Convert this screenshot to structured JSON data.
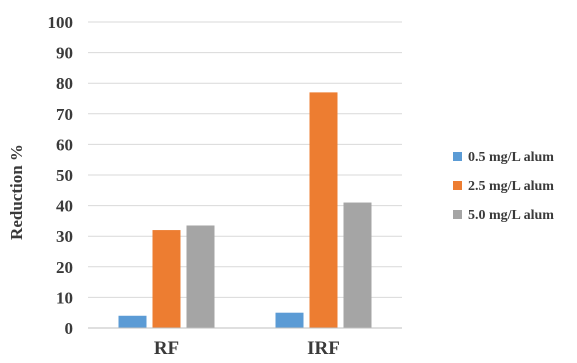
{
  "chart_data": {
    "type": "bar",
    "title": "",
    "xlabel": "",
    "ylabel": "Reduction %",
    "ylim": [
      0,
      100
    ],
    "yticks": [
      "0",
      "10",
      "20",
      "30",
      "40",
      "50",
      "60",
      "70",
      "80",
      "90",
      "100"
    ],
    "categories": [
      "RF",
      "IRF"
    ],
    "series": [
      {
        "name": "0.5 mg/L alum",
        "color": "#5b9bd5",
        "values": [
          4,
          5
        ]
      },
      {
        "name": "2.5 mg/L alum",
        "color": "#ed7d31",
        "values": [
          32,
          77
        ]
      },
      {
        "name": "5.0 mg/L alum",
        "color": "#a5a5a5",
        "values": [
          33.5,
          41
        ]
      }
    ],
    "grid": true,
    "legend_position": "right"
  }
}
